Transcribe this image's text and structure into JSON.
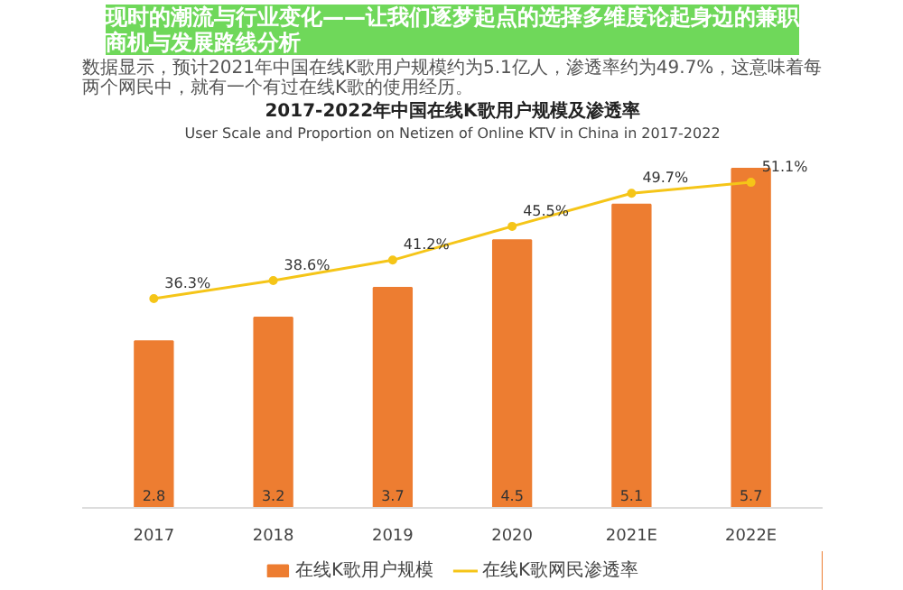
{
  "chart_data": {
    "type": "bar",
    "title": "2017-2022年中国在线K歌用户规模及渗透率",
    "subtitle": "User Scale and Proportion on Netizen of Online KTV in China in 2017-2022",
    "annotations": [
      "现时的潮流与行业变化——让我们逐梦起点的选择多维度论起身边的兼职商机与发展路线分析",
      "数据显示，预计2021年中国在线K歌用户规模约为5.1亿人，渗透率约为49.7%，这意味着每两个网民中，就有一个有过在线K歌的使用经历。"
    ],
    "categories": [
      "2017",
      "2018",
      "2019",
      "2020",
      "2021E",
      "2022E"
    ],
    "series": [
      {
        "name": "在线K歌用户规模",
        "color": "#ed7d31",
        "values": [
          2.8,
          3.2,
          3.7,
          4.5,
          5.1,
          5.7
        ],
        "value_labels": [
          "2.8",
          "3.2",
          "3.7",
          "4.5",
          "5.1",
          "5.7"
        ]
      },
      {
        "name": "在线K歌网民渗透率",
        "type": "line",
        "axis": "y2",
        "color": "#f5c518",
        "values": [
          36.3,
          38.6,
          41.2,
          45.5,
          49.7,
          51.1
        ],
        "value_labels": [
          "36.3%",
          "38.6%",
          "41.2%",
          "45.5%",
          "49.7%",
          "51.1%"
        ]
      }
    ],
    "tick_labels": "x",
    "grid": false,
    "legend": "bottom",
    "marker": "circle",
    "line_style": "solid"
  }
}
